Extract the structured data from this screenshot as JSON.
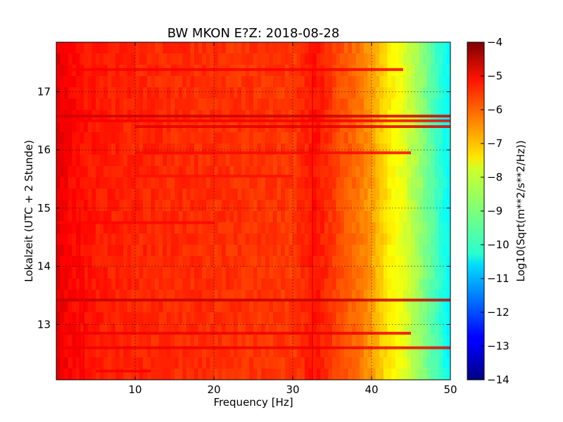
{
  "chart_data": {
    "type": "heatmap",
    "title": "BW MKON E?Z: 2018-08-28",
    "xlabel": "Frequency [Hz]",
    "ylabel": "Lokalzeit (UTC + 2 Stunde)",
    "xlim": [
      0,
      50
    ],
    "ylim": [
      17.85,
      12.05
    ],
    "x_ticks": [
      10,
      20,
      30,
      40,
      50
    ],
    "x_tick_labels": [
      "10",
      "20",
      "30",
      "40",
      "50"
    ],
    "y_ticks": [
      13,
      14,
      15,
      16,
      17
    ],
    "y_tick_labels": [
      "13",
      "14",
      "15",
      "16",
      "17"
    ],
    "grid": true,
    "colormap": "jet",
    "colorbar": {
      "label": "Log10(Sqrt(m**2/s**2/Hz))",
      "range": [
        -14,
        -4
      ],
      "ticks": [
        -4,
        -5,
        -6,
        -7,
        -8,
        -9,
        -10,
        -11,
        -12,
        -13,
        -14
      ],
      "tick_labels": [
        "−4",
        "−5",
        "−6",
        "−7",
        "−8",
        "−9",
        "−10",
        "−11",
        "−12",
        "−13",
        "−14"
      ]
    },
    "spectrum_profile": {
      "frequency": [
        0,
        2,
        5,
        10,
        20,
        30,
        33,
        36,
        38,
        40,
        42,
        44,
        46,
        48,
        50
      ],
      "value": [
        -5.0,
        -5.3,
        -5.5,
        -5.6,
        -5.7,
        -5.8,
        -5.4,
        -6.0,
        -6.3,
        -6.8,
        -7.5,
        -8.0,
        -8.7,
        -9.5,
        -10.3
      ]
    },
    "horizontal_bands": [
      {
        "time": 12.2,
        "f_start": 5,
        "f_end": 12,
        "value": -5.2
      },
      {
        "time": 12.6,
        "f_start": 0,
        "f_end": 50,
        "value": -5.1
      },
      {
        "time": 12.85,
        "f_start": 0,
        "f_end": 45,
        "value": -5.1
      },
      {
        "time": 13.42,
        "f_start": 0,
        "f_end": 50,
        "value": -4.7
      },
      {
        "time": 14.75,
        "f_start": 0,
        "f_end": 20,
        "value": -5.3
      },
      {
        "time": 15.55,
        "f_start": 10,
        "f_end": 30,
        "value": -5.4
      },
      {
        "time": 15.95,
        "f_start": 10,
        "f_end": 45,
        "value": -5.3
      },
      {
        "time": 16.4,
        "f_start": 10,
        "f_end": 50,
        "value": -5.0
      },
      {
        "time": 16.5,
        "f_start": 0,
        "f_end": 50,
        "value": -5.2
      },
      {
        "time": 16.58,
        "f_start": 0,
        "f_end": 50,
        "value": -4.8
      },
      {
        "time": 17.38,
        "f_start": 2,
        "f_end": 44,
        "value": -5.2
      }
    ],
    "vertical_lines": [
      {
        "frequency": 3,
        "t_start": 12.05,
        "t_end": 15.0,
        "value": -5.1
      },
      {
        "frequency": 3.5,
        "t_start": 12.05,
        "t_end": 14.0,
        "value": -5.1
      },
      {
        "frequency": 32.5,
        "t_start": 12.05,
        "t_end": 17.4,
        "value": -5.0
      }
    ]
  }
}
